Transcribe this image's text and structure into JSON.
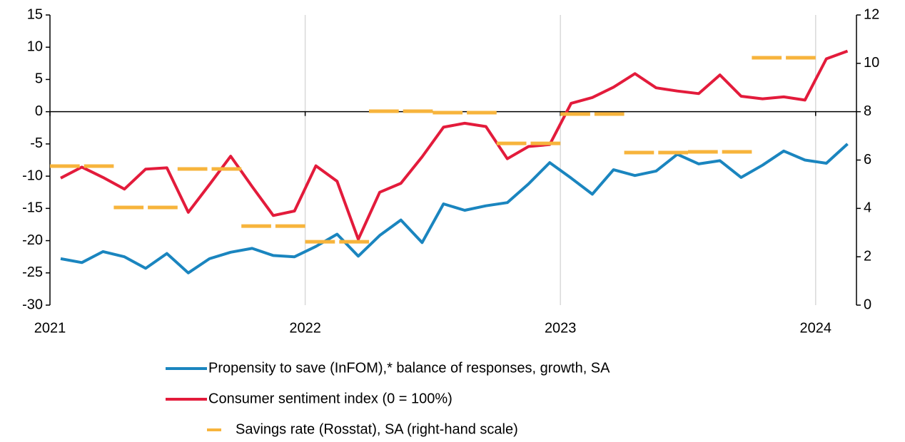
{
  "chart_data": {
    "type": "line",
    "x": [
      2021.042,
      2021.125,
      2021.208,
      2021.292,
      2021.375,
      2021.458,
      2021.542,
      2021.625,
      2021.708,
      2021.792,
      2021.875,
      2021.958,
      2022.042,
      2022.125,
      2022.208,
      2022.292,
      2022.375,
      2022.458,
      2022.542,
      2022.625,
      2022.708,
      2022.792,
      2022.875,
      2022.958,
      2023.042,
      2023.125,
      2023.208,
      2023.292,
      2023.375,
      2023.458,
      2023.542,
      2023.625,
      2023.708,
      2023.792,
      2023.875,
      2023.958,
      2024.042,
      2024.125
    ],
    "xlim": [
      2021,
      2024.16
    ],
    "xticks": [
      2021,
      2022,
      2023,
      2024
    ],
    "ylim": [
      -30,
      15
    ],
    "yticks": [
      -30,
      -25,
      -20,
      -15,
      -10,
      -5,
      0,
      5,
      10,
      15
    ],
    "y2lim": [
      0,
      12
    ],
    "y2ticks": [
      0,
      2,
      4,
      6,
      8,
      10,
      12
    ],
    "grid": true,
    "series": [
      {
        "name": "Propensity to save (InFOM),* balance of responses, growth, SA",
        "color": "#1a85bf",
        "values": [
          -22.8,
          -23.4,
          -21.7,
          -22.5,
          -24.3,
          -22.0,
          -25.0,
          -22.8,
          -21.8,
          -21.2,
          -22.3,
          -22.5,
          -20.9,
          -19.0,
          -22.4,
          -19.2,
          -16.8,
          -20.3,
          -14.3,
          -15.3,
          -14.6,
          -14.1,
          -11.2,
          -7.9,
          -10.3,
          -12.8,
          -9.0,
          -9.9,
          -9.2,
          -6.6,
          -8.1,
          -7.6,
          -10.2,
          -8.3,
          -6.1,
          -7.5,
          -8.0,
          -5.0
        ]
      },
      {
        "name": "Consumer sentiment index (0 = 100%)",
        "color": "#e31b3b",
        "values": [
          -10.3,
          -8.6,
          -10.2,
          -12.0,
          -8.9,
          -8.7,
          -15.6,
          -11.3,
          -6.9,
          -11.6,
          -16.1,
          -15.4,
          -8.4,
          -10.8,
          -19.8,
          -12.5,
          -11.1,
          -7.0,
          -2.4,
          -1.8,
          -2.3,
          -7.3,
          -5.4,
          -5.1,
          1.3,
          2.2,
          3.8,
          5.9,
          3.7,
          3.2,
          2.8,
          5.7,
          2.4,
          2.0,
          2.3,
          1.8,
          8.2,
          9.4
        ]
      },
      {
        "name": "Savings rate (Rosstat), SA (right-hand scale)",
        "color": "#f7b43c",
        "axis": "y2",
        "x": [
          2021,
          2021.25,
          2021.5,
          2021.75,
          2022,
          2022.25,
          2022.5,
          2022.75,
          2023,
          2023.25,
          2023.5,
          2023.75
        ],
        "values": [
          5.75,
          4.04,
          5.63,
          3.27,
          2.62,
          8.02,
          7.96,
          6.69,
          7.9,
          6.31,
          6.34,
          10.23
        ]
      }
    ]
  }
}
